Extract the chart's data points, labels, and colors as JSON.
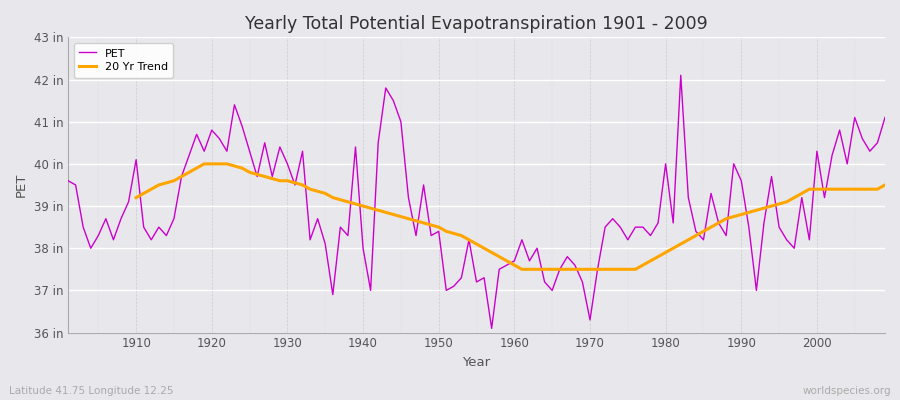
{
  "title": "Yearly Total Potential Evapotranspiration 1901 - 2009",
  "xlabel": "Year",
  "ylabel": "PET",
  "bottom_left_label": "Latitude 41.75 Longitude 12.25",
  "bottom_right_label": "worldspecies.org",
  "pet_color": "#cc00cc",
  "trend_color": "#ffa500",
  "background_color": "#e8e8ec",
  "ylim": [
    36,
    43
  ],
  "yticks": [
    36,
    37,
    38,
    39,
    40,
    41,
    42,
    43
  ],
  "ytick_labels": [
    "36 in",
    "37 in",
    "38 in",
    "39 in",
    "40 in",
    "41 in",
    "42 in",
    "43 in"
  ],
  "years": [
    1901,
    1902,
    1903,
    1904,
    1905,
    1906,
    1907,
    1908,
    1909,
    1910,
    1911,
    1912,
    1913,
    1914,
    1915,
    1916,
    1917,
    1918,
    1919,
    1920,
    1921,
    1922,
    1923,
    1924,
    1925,
    1926,
    1927,
    1928,
    1929,
    1930,
    1931,
    1932,
    1933,
    1934,
    1935,
    1936,
    1937,
    1938,
    1939,
    1940,
    1941,
    1942,
    1943,
    1944,
    1945,
    1946,
    1947,
    1948,
    1949,
    1950,
    1951,
    1952,
    1953,
    1954,
    1955,
    1956,
    1957,
    1958,
    1959,
    1960,
    1961,
    1962,
    1963,
    1964,
    1965,
    1966,
    1967,
    1968,
    1969,
    1970,
    1971,
    1972,
    1973,
    1974,
    1975,
    1976,
    1977,
    1978,
    1979,
    1980,
    1981,
    1982,
    1983,
    1984,
    1985,
    1986,
    1987,
    1988,
    1989,
    1990,
    1991,
    1992,
    1993,
    1994,
    1995,
    1996,
    1997,
    1998,
    1999,
    2000,
    2001,
    2002,
    2003,
    2004,
    2005,
    2006,
    2007,
    2008,
    2009
  ],
  "pet_values": [
    39.6,
    39.5,
    38.5,
    38.0,
    38.3,
    38.7,
    38.2,
    38.7,
    39.1,
    40.1,
    38.5,
    38.2,
    38.5,
    38.3,
    38.7,
    39.7,
    40.2,
    40.7,
    40.3,
    40.8,
    40.6,
    40.3,
    41.4,
    40.9,
    40.3,
    39.7,
    40.5,
    39.7,
    40.4,
    40.0,
    39.5,
    40.3,
    38.2,
    38.7,
    38.1,
    36.9,
    38.5,
    38.3,
    40.4,
    38.0,
    37.0,
    40.5,
    41.8,
    41.5,
    41.0,
    39.2,
    38.3,
    39.5,
    38.3,
    38.4,
    37.0,
    37.1,
    37.3,
    38.2,
    37.2,
    37.3,
    36.1,
    37.5,
    37.6,
    37.7,
    38.2,
    37.7,
    38.0,
    37.2,
    37.0,
    37.5,
    37.8,
    37.6,
    37.2,
    36.3,
    37.5,
    38.5,
    38.7,
    38.5,
    38.2,
    38.5,
    38.5,
    38.3,
    38.6,
    40.0,
    38.6,
    42.1,
    39.2,
    38.4,
    38.2,
    39.3,
    38.6,
    38.3,
    40.0,
    39.6,
    38.5,
    37.0,
    38.6,
    39.7,
    38.5,
    38.2,
    38.0,
    39.2,
    38.2,
    40.3,
    39.2,
    40.2,
    40.8,
    40.0,
    41.1,
    40.6,
    40.3,
    40.5,
    41.1
  ],
  "trend_years": [
    1910,
    1911,
    1912,
    1913,
    1914,
    1915,
    1916,
    1917,
    1918,
    1919,
    1920,
    1921,
    1922,
    1923,
    1924,
    1925,
    1926,
    1927,
    1928,
    1929,
    1930,
    1931,
    1932,
    1933,
    1934,
    1935,
    1936,
    1937,
    1938,
    1939,
    1940,
    1941,
    1942,
    1943,
    1944,
    1945,
    1946,
    1947,
    1948,
    1949,
    1950,
    1951,
    1952,
    1953,
    1954,
    1955,
    1956,
    1957,
    1958,
    1959,
    1960,
    1961,
    1962,
    1963,
    1964,
    1965,
    1966,
    1967,
    1968,
    1969,
    1970,
    1971,
    1972,
    1973,
    1974,
    1975,
    1976,
    1977,
    1978,
    1979,
    1980,
    1981,
    1982,
    1983,
    1984,
    1985,
    1986,
    1987,
    1988,
    1989,
    1990,
    1991,
    1992,
    1993,
    1994,
    1995,
    1996,
    1997,
    1998,
    1999,
    2000,
    2001,
    2002,
    2003,
    2004,
    2005,
    2006,
    2007,
    2008,
    2009
  ],
  "trend_values": [
    39.2,
    39.3,
    39.4,
    39.5,
    39.55,
    39.6,
    39.7,
    39.8,
    39.9,
    40.0,
    40.0,
    40.0,
    40.0,
    39.95,
    39.9,
    39.8,
    39.75,
    39.7,
    39.65,
    39.6,
    39.6,
    39.55,
    39.5,
    39.4,
    39.35,
    39.3,
    39.2,
    39.15,
    39.1,
    39.05,
    39.0,
    38.95,
    38.9,
    38.85,
    38.8,
    38.75,
    38.7,
    38.65,
    38.6,
    38.55,
    38.5,
    38.4,
    38.35,
    38.3,
    38.2,
    38.1,
    38.0,
    37.9,
    37.8,
    37.7,
    37.6,
    37.5,
    37.5,
    37.5,
    37.5,
    37.5,
    37.5,
    37.5,
    37.5,
    37.5,
    37.5,
    37.5,
    37.5,
    37.5,
    37.5,
    37.5,
    37.5,
    37.6,
    37.7,
    37.8,
    37.9,
    38.0,
    38.1,
    38.2,
    38.3,
    38.4,
    38.5,
    38.6,
    38.7,
    38.75,
    38.8,
    38.85,
    38.9,
    38.95,
    39.0,
    39.05,
    39.1,
    39.2,
    39.3,
    39.4,
    39.4,
    39.4,
    39.4,
    39.4,
    39.4,
    39.4,
    39.4,
    39.4,
    39.4,
    39.5
  ]
}
